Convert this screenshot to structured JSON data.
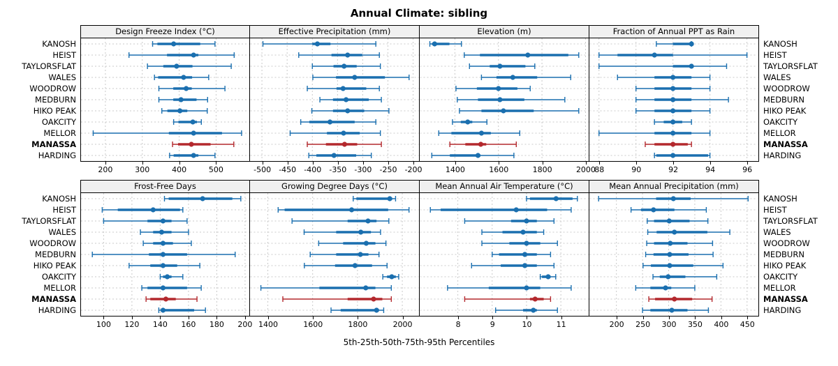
{
  "title": "Annual Climate: sibling",
  "caption": "5th-25th-50th-75th-95th Percentiles",
  "colors": {
    "series_blue": "#1a6faf",
    "series_red": "#b3282d",
    "grid": "#c9c9c9",
    "header_bg": "#f0f0f0",
    "border": "#000000"
  },
  "chart_data": {
    "type": "dotplot",
    "subtype": "percentile-whiskers",
    "percentiles": [
      5,
      25,
      50,
      75,
      95
    ],
    "legend_position": "none",
    "grid": "dashed",
    "sites": [
      "KANOSH",
      "HEIST",
      "TAYLORSFLAT",
      "WALES",
      "WOODROW",
      "MEDBURN",
      "HIKO PEAK",
      "OAKCITY",
      "MELLOR",
      "MANASSA",
      "HARDING"
    ],
    "highlight_site": "MANASSA",
    "layout": {
      "rows": 2,
      "cols": 4
    },
    "panels": [
      {
        "title": "Design Freeze Index (°C)",
        "xlim": [
          134,
          590
        ],
        "ticks": [
          200,
          300,
          400,
          500
        ],
        "values": {
          "KANOSH": [
            328,
            341,
            385,
            457,
            497
          ],
          "HEIST": [
            264,
            367,
            439,
            452,
            549
          ],
          "TAYLORSFLAT": [
            314,
            357,
            393,
            436,
            541
          ],
          "WALES": [
            333,
            343,
            412,
            435,
            480
          ],
          "WOODROW": [
            345,
            384,
            419,
            434,
            524
          ],
          "MEDBURN": [
            345,
            384,
            405,
            447,
            477
          ],
          "HIKO PEAK": [
            353,
            368,
            402,
            422,
            476
          ],
          "OAKCITY": [
            385,
            398,
            437,
            448,
            460
          ],
          "MELLOR": [
            167,
            372,
            439,
            516,
            569
          ],
          "MANASSA": [
            382,
            397,
            433,
            485,
            548
          ],
          "HARDING": [
            374,
            385,
            439,
            452,
            497
          ]
        }
      },
      {
        "title": "Effective Precipitation (mm)",
        "xlim": [
          -523,
          -189
        ],
        "ticks": [
          -500,
          -450,
          -400,
          -350,
          -300,
          -250,
          -200
        ],
        "values": {
          "KANOSH": [
            -498,
            -400,
            -390,
            -364,
            -274
          ],
          "HEIST": [
            -427,
            -362,
            -330,
            -301,
            -267
          ],
          "TAYLORSFLAT": [
            -400,
            -358,
            -337,
            -312,
            -265
          ],
          "WALES": [
            -399,
            -353,
            -316,
            -256,
            -208
          ],
          "WOODROW": [
            -410,
            -352,
            -339,
            -293,
            -267
          ],
          "MEDBURN": [
            -385,
            -359,
            -333,
            -288,
            -263
          ],
          "HIKO PEAK": [
            -401,
            -359,
            -330,
            -297,
            -248
          ],
          "OAKCITY": [
            -423,
            -406,
            -365,
            -316,
            -274
          ],
          "MELLOR": [
            -444,
            -371,
            -338,
            -306,
            -265
          ],
          "MANASSA": [
            -410,
            -373,
            -336,
            -311,
            -263
          ],
          "HARDING": [
            -407,
            -392,
            -357,
            -313,
            -283
          ]
        }
      },
      {
        "title": "Elevation (m)",
        "xlim": [
          1240,
          2013
        ],
        "ticks": [
          1400,
          1600,
          1800,
          2000
        ],
        "values": {
          "KANOSH": [
            1285,
            1295,
            1307,
            1375,
            1430
          ],
          "HEIST": [
            1443,
            1515,
            1735,
            1921,
            1969
          ],
          "TAYLORSFLAT": [
            1467,
            1560,
            1607,
            1724,
            1767
          ],
          "WALES": [
            1522,
            1591,
            1666,
            1778,
            1932
          ],
          "WOODROW": [
            1405,
            1501,
            1600,
            1687,
            1746
          ],
          "MEDBURN": [
            1411,
            1506,
            1607,
            1719,
            1905
          ],
          "HIKO PEAK": [
            1421,
            1522,
            1623,
            1762,
            1969
          ],
          "OAKCITY": [
            1389,
            1427,
            1459,
            1480,
            1547
          ],
          "MELLOR": [
            1326,
            1384,
            1522,
            1565,
            1698
          ],
          "MANASSA": [
            1377,
            1448,
            1519,
            1544,
            1682
          ],
          "HARDING": [
            1294,
            1377,
            1506,
            1517,
            1671
          ]
        }
      },
      {
        "title": "Fraction of Annual PPT as Rain",
        "xlim": [
          87.5,
          96.6
        ],
        "ticks": [
          88,
          90,
          92,
          94,
          96
        ],
        "values": {
          "KANOSH": [
            91.1,
            92.0,
            93.0,
            93.0,
            93.0
          ],
          "HEIST": [
            88.0,
            89.0,
            91.0,
            92.0,
            96.0
          ],
          "TAYLORSFLAT": [
            88.0,
            92.0,
            93.0,
            93.0,
            94.9
          ],
          "WALES": [
            89.0,
            91.0,
            92.0,
            93.0,
            94.0
          ],
          "WOODROW": [
            90.0,
            91.0,
            92.0,
            93.0,
            94.0
          ],
          "MEDBURN": [
            90.0,
            91.0,
            92.0,
            93.0,
            95.0
          ],
          "HIKO PEAK": [
            90.0,
            91.0,
            92.0,
            93.0,
            94.0
          ],
          "OAKCITY": [
            91.0,
            91.5,
            92.0,
            92.5,
            93.0
          ],
          "MELLOR": [
            88.0,
            91.0,
            92.0,
            93.0,
            94.0
          ],
          "MANASSA": [
            90.5,
            91.0,
            92.0,
            92.8,
            93.0
          ],
          "HARDING": [
            91.0,
            91.1,
            92.0,
            93.9,
            94.0
          ]
        }
      },
      {
        "title": "Frost-Free Days",
        "xlim": [
          84,
          203
        ],
        "ticks": [
          100,
          120,
          140,
          160,
          180,
          200
        ],
        "values": {
          "KANOSH": [
            143,
            146,
            170,
            191,
            197
          ],
          "HEIST": [
            99,
            110,
            135,
            154,
            156
          ],
          "TAYLORSFLAT": [
            100,
            131,
            142,
            148,
            159
          ],
          "WALES": [
            126,
            135,
            141,
            148,
            160
          ],
          "WOODROW": [
            128,
            135,
            142,
            149,
            162
          ],
          "MEDBURN": [
            92,
            132,
            142,
            159,
            193
          ],
          "HIKO PEAK": [
            118,
            133,
            142,
            152,
            168
          ],
          "OAKCITY": [
            140,
            142,
            145,
            148,
            156
          ],
          "MELLOR": [
            127,
            131,
            142,
            159,
            169
          ],
          "MANASSA": [
            130,
            133,
            144,
            151,
            166
          ],
          "HARDING": [
            139,
            141,
            142,
            164,
            172
          ]
        }
      },
      {
        "title": "Growing Degree Days (°C)",
        "xlim": [
          1322,
          2073
        ],
        "ticks": [
          1400,
          1600,
          1800,
          2000
        ],
        "values": {
          "KANOSH": [
            1781,
            1795,
            1944,
            1955,
            1970
          ],
          "HEIST": [
            1446,
            1475,
            1774,
            1937,
            2030
          ],
          "TAYLORSFLAT": [
            1508,
            1756,
            1847,
            1885,
            1940
          ],
          "WALES": [
            1562,
            1705,
            1815,
            1860,
            1903
          ],
          "WOODROW": [
            1627,
            1736,
            1839,
            1880,
            1927
          ],
          "MEDBURN": [
            1589,
            1705,
            1813,
            1849,
            1896
          ],
          "HIKO PEAK": [
            1563,
            1700,
            1789,
            1865,
            1932
          ],
          "OAKCITY": [
            1913,
            1932,
            1953,
            1971,
            1984
          ],
          "MELLOR": [
            1369,
            1630,
            1837,
            1880,
            1951
          ],
          "MANASSA": [
            1467,
            1756,
            1872,
            1911,
            1951
          ],
          "HARDING": [
            1682,
            1725,
            1885,
            1896,
            1917
          ]
        }
      },
      {
        "title": "Mean Annual Air Temperature (°C)",
        "xlim": [
          6.9,
          11.8
        ],
        "ticks": [
          8,
          9,
          10,
          11
        ],
        "values": {
          "KANOSH": [
            10.0,
            10.1,
            10.86,
            11.34,
            11.48
          ],
          "HEIST": [
            7.2,
            7.5,
            9.7,
            10.6,
            11.3
          ],
          "TAYLORSFLAT": [
            8.2,
            9.55,
            10.0,
            10.3,
            10.8
          ],
          "WALES": [
            8.7,
            9.3,
            9.9,
            10.3,
            10.5
          ],
          "WOODROW": [
            8.7,
            9.5,
            10.0,
            10.4,
            10.9
          ],
          "MEDBURN": [
            9.0,
            9.2,
            9.95,
            10.3,
            10.7
          ],
          "HIKO PEAK": [
            8.4,
            9.25,
            9.95,
            10.3,
            10.8
          ],
          "OAKCITY": [
            10.4,
            10.45,
            10.63,
            10.7,
            10.85
          ],
          "MELLOR": [
            7.7,
            8.9,
            10.0,
            10.4,
            11.3
          ],
          "MANASSA": [
            8.2,
            10.1,
            10.25,
            10.5,
            10.7
          ],
          "HARDING": [
            9.1,
            9.9,
            10.2,
            10.3,
            10.9
          ]
        }
      },
      {
        "title": "Mean Annual Precipitation (mm)",
        "xlim": [
          149,
          471
        ],
        "ticks": [
          200,
          250,
          300,
          350,
          400,
          450
        ],
        "values": {
          "KANOSH": [
            166,
            276,
            309,
            342,
            452
          ],
          "HEIST": [
            228,
            247,
            271,
            311,
            372
          ],
          "TAYLORSFLAT": [
            259,
            272,
            301,
            340,
            375
          ],
          "WALES": [
            260,
            277,
            311,
            374,
            417
          ],
          "WOODROW": [
            258,
            272,
            303,
            336,
            384
          ],
          "MEDBURN": [
            256,
            271,
            302,
            338,
            385
          ],
          "HIKO PEAK": [
            251,
            266,
            302,
            347,
            404
          ],
          "OAKCITY": [
            270,
            283,
            299,
            332,
            392
          ],
          "MELLOR": [
            237,
            265,
            294,
            305,
            350
          ],
          "MANASSA": [
            262,
            274,
            311,
            345,
            383
          ],
          "HARDING": [
            250,
            265,
            306,
            336,
            376
          ]
        }
      }
    ]
  }
}
